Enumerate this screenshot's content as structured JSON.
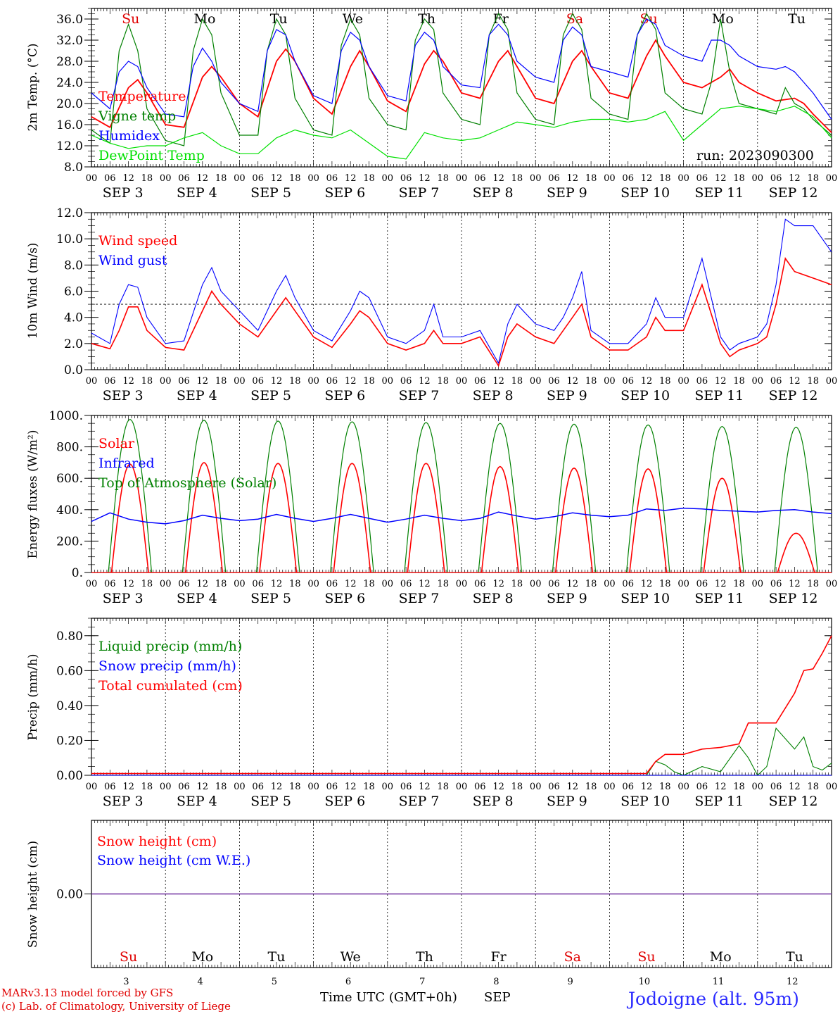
{
  "run_label": "run: 2023090300",
  "site_label": "Jodoigne (alt. 95m)",
  "credit_line1": "MARv3.13 model forced by GFS",
  "credit_line2": "(c) Lab. of Climatology, University of Liege",
  "xaxis_title": "Time UTC (GMT+0h)",
  "month_label": "SEP",
  "hour_ticks": [
    "00",
    "06",
    "12",
    "18"
  ],
  "date_labels": [
    "SEP  3",
    "SEP  4",
    "SEP  5",
    "SEP  6",
    "SEP  7",
    "SEP  8",
    "SEP  9",
    "SEP 10",
    "SEP 11",
    "SEP 12"
  ],
  "day_numbers": [
    "3",
    "4",
    "5",
    "6",
    "7",
    "8",
    "9",
    "10",
    "11",
    "12"
  ],
  "weekdays": [
    "Su",
    "Mo",
    "Tu",
    "We",
    "Th",
    "Fr",
    "Sa",
    "Su",
    "Mo",
    "Tu"
  ],
  "weekday_colors": [
    "#e00000",
    "#000000",
    "#000000",
    "#000000",
    "#000000",
    "#000000",
    "#e00000",
    "#e00000",
    "#000000",
    "#000000"
  ],
  "colors": {
    "red": "#ff0000",
    "green": "#008000",
    "blue": "#0000ff",
    "lightgreen": "#00e000",
    "purple": "#7030a0"
  },
  "chart_data": [
    {
      "type": "line",
      "ylabel": "2m Temp. (°C)",
      "ylim": [
        8,
        38
      ],
      "yticks": [
        "8.0",
        "12.0",
        "16.0",
        "20.0",
        "24.0",
        "28.0",
        "32.0",
        "36.0"
      ],
      "x_unit": "hours since SEP 3 00 UTC",
      "xlim": [
        0,
        240
      ],
      "series": [
        {
          "name": "Temperature",
          "color": "#ff0000",
          "x": [
            0,
            6,
            12,
            15,
            18,
            24,
            30,
            36,
            39,
            42,
            48,
            54,
            60,
            63,
            66,
            72,
            78,
            84,
            87,
            90,
            96,
            102,
            108,
            111,
            114,
            120,
            126,
            132,
            135,
            138,
            144,
            150,
            156,
            159,
            162,
            168,
            174,
            180,
            183,
            186,
            192,
            198,
            204,
            207,
            210,
            216,
            222,
            228,
            231,
            234,
            240
          ],
          "y": [
            17.5,
            15.5,
            23,
            24.5,
            22,
            16,
            15.5,
            25,
            27,
            25,
            20,
            17.5,
            28,
            30.3,
            28,
            21,
            18,
            27,
            30,
            27,
            20.5,
            18.5,
            27.5,
            30,
            28,
            22,
            21,
            28,
            30,
            27,
            21,
            20,
            28,
            30,
            27,
            22,
            21,
            29,
            32,
            29,
            24,
            23,
            25,
            26.5,
            24,
            22,
            20.5,
            21,
            20,
            18,
            14.5
          ]
        },
        {
          "name": "Vigne temp",
          "color": "#008000",
          "x": [
            0,
            6,
            9,
            12,
            15,
            18,
            24,
            30,
            33,
            36,
            39,
            42,
            48,
            54,
            57,
            60,
            63,
            66,
            72,
            78,
            81,
            84,
            87,
            90,
            96,
            102,
            105,
            108,
            111,
            114,
            120,
            126,
            129,
            132,
            135,
            138,
            144,
            150,
            153,
            156,
            159,
            162,
            168,
            174,
            177,
            180,
            183,
            186,
            192,
            198,
            201,
            204,
            207,
            210,
            216,
            222,
            225,
            228,
            231,
            234,
            240
          ],
          "y": [
            15,
            12.5,
            30,
            35,
            30,
            19,
            13,
            12,
            30,
            36,
            33,
            22,
            14,
            14,
            30,
            36,
            33,
            21,
            15,
            14,
            31,
            36,
            33,
            21,
            16,
            15,
            32,
            36,
            34,
            22,
            17,
            16,
            33,
            37,
            34,
            22,
            17,
            16,
            33,
            37,
            34,
            21,
            18,
            17,
            33,
            37,
            34,
            22,
            19,
            18,
            24,
            36,
            26,
            20,
            19,
            18,
            23,
            20,
            19,
            17,
            14
          ]
        },
        {
          "name": "Humidex",
          "color": "#0000ff",
          "x": [
            0,
            6,
            9,
            12,
            15,
            18,
            24,
            30,
            33,
            36,
            39,
            42,
            48,
            54,
            57,
            60,
            63,
            66,
            72,
            78,
            81,
            84,
            87,
            90,
            96,
            102,
            105,
            108,
            111,
            114,
            120,
            126,
            129,
            132,
            135,
            138,
            144,
            150,
            153,
            156,
            159,
            162,
            168,
            174,
            177,
            180,
            183,
            186,
            192,
            198,
            201,
            204,
            207,
            210,
            216,
            222,
            225,
            228,
            231,
            234,
            240
          ],
          "y": [
            22,
            19,
            26,
            28,
            27,
            23,
            18,
            17.5,
            27,
            30.5,
            28,
            24,
            20,
            18.5,
            30,
            34,
            33,
            28,
            21.5,
            20,
            30,
            33.5,
            32,
            27,
            21.5,
            20.5,
            31,
            33.5,
            32,
            27,
            23.5,
            23,
            33,
            35,
            33,
            28,
            25,
            24,
            32,
            34.5,
            33,
            27,
            26,
            25,
            33,
            36,
            35,
            31,
            29,
            28,
            32,
            32,
            31,
            29,
            27,
            26.5,
            27,
            26,
            24,
            22,
            17
          ]
        },
        {
          "name": "DewPoint Temp",
          "color": "#00e000",
          "x": [
            0,
            6,
            12,
            18,
            24,
            30,
            36,
            42,
            48,
            54,
            60,
            66,
            72,
            78,
            84,
            90,
            96,
            102,
            108,
            114,
            120,
            126,
            132,
            138,
            144,
            150,
            156,
            162,
            168,
            174,
            180,
            186,
            192,
            198,
            204,
            210,
            216,
            222,
            228,
            234,
            240
          ],
          "y": [
            14,
            12.5,
            11.5,
            12,
            12,
            13.5,
            14.5,
            12,
            10.5,
            10.5,
            13.5,
            15,
            14,
            13.5,
            15,
            12.5,
            10,
            9.5,
            14.5,
            13.5,
            13,
            13.5,
            15,
            16.5,
            16,
            15.5,
            16.5,
            17,
            17,
            16.5,
            17,
            18.5,
            13,
            16,
            19,
            19.5,
            19,
            18.5,
            19.5,
            17.5,
            13.5
          ]
        }
      ]
    },
    {
      "type": "line",
      "ylabel": "10m Wind (m/s)",
      "ylim": [
        0,
        12
      ],
      "yticks": [
        "0.0",
        "2.0",
        "4.0",
        "6.0",
        "8.0",
        "10.0",
        "12.0"
      ],
      "reference_line": 5.0,
      "xlim": [
        0,
        240
      ],
      "series": [
        {
          "name": "Wind speed",
          "color": "#ff0000",
          "x": [
            0,
            6,
            9,
            12,
            15,
            18,
            24,
            30,
            36,
            39,
            42,
            48,
            54,
            60,
            63,
            66,
            72,
            78,
            84,
            87,
            90,
            96,
            102,
            108,
            111,
            114,
            120,
            126,
            132,
            135,
            138,
            144,
            150,
            153,
            156,
            159,
            162,
            168,
            174,
            180,
            183,
            186,
            192,
            198,
            204,
            207,
            210,
            216,
            219,
            222,
            225,
            228,
            234,
            240
          ],
          "y": [
            2,
            1.6,
            3,
            4.8,
            4.8,
            3,
            1.7,
            1.5,
            4.5,
            6,
            5,
            3.5,
            2.5,
            4.5,
            5.5,
            4.5,
            2.5,
            1.7,
            3.5,
            4.5,
            4,
            2,
            1.5,
            2,
            3,
            2,
            2,
            2.5,
            0.3,
            2.5,
            3.5,
            2.5,
            2,
            3,
            4,
            5,
            2.5,
            1.5,
            1.5,
            2.5,
            4,
            3,
            3,
            6.5,
            2,
            1,
            1.5,
            2,
            2.5,
            5,
            8.5,
            7.5,
            7,
            6.5
          ]
        },
        {
          "name": "Wind gust",
          "color": "#0000ff",
          "x": [
            0,
            6,
            9,
            12,
            15,
            18,
            24,
            30,
            36,
            39,
            42,
            48,
            54,
            60,
            63,
            66,
            72,
            78,
            84,
            87,
            90,
            96,
            102,
            108,
            111,
            114,
            120,
            126,
            132,
            135,
            138,
            144,
            150,
            153,
            156,
            159,
            162,
            168,
            174,
            180,
            183,
            186,
            192,
            198,
            204,
            207,
            210,
            216,
            219,
            222,
            225,
            228,
            234,
            240
          ],
          "y": [
            2.8,
            2,
            5,
            6.5,
            6.3,
            4,
            2,
            2.2,
            6.5,
            7.8,
            6,
            4.5,
            3,
            6,
            7.2,
            5.5,
            3,
            2.2,
            4.5,
            6,
            5.5,
            2.5,
            2,
            3,
            5,
            2.5,
            2.5,
            3,
            0.5,
            3.5,
            5,
            3.5,
            3,
            4,
            5.5,
            7.5,
            3,
            2,
            2,
            3.5,
            5.5,
            4,
            4,
            8.5,
            2.5,
            1.5,
            2,
            2.5,
            3.5,
            6.5,
            11.5,
            11,
            11,
            9
          ]
        }
      ]
    },
    {
      "type": "line",
      "ylabel": "Energy fluxes (W/m²)",
      "ylim": [
        0,
        1000
      ],
      "yticks": [
        "0.",
        "200.",
        "400.",
        "600.",
        "800.",
        "1000."
      ],
      "xlim": [
        0,
        240
      ],
      "series": [
        {
          "name": "Solar",
          "color": "#ff0000"
        },
        {
          "name": "Infrared",
          "color": "#0000ff"
        },
        {
          "name": "Top of Atmosphere (Solar)",
          "color": "#008000"
        }
      ],
      "solar_daily_peak": [
        690,
        700,
        695,
        695,
        695,
        675,
        665,
        660,
        600,
        250
      ],
      "toa_daily_peak": [
        975,
        970,
        965,
        960,
        955,
        950,
        945,
        940,
        930,
        925
      ],
      "infrared_x": [
        0,
        6,
        12,
        18,
        24,
        30,
        36,
        42,
        48,
        54,
        60,
        66,
        72,
        78,
        84,
        90,
        96,
        102,
        108,
        114,
        120,
        126,
        132,
        138,
        144,
        150,
        156,
        162,
        168,
        174,
        180,
        186,
        192,
        198,
        204,
        210,
        216,
        222,
        228,
        234,
        240
      ],
      "infrared_y": [
        325,
        380,
        340,
        320,
        310,
        330,
        365,
        345,
        330,
        340,
        370,
        345,
        325,
        345,
        370,
        345,
        320,
        340,
        365,
        345,
        330,
        345,
        385,
        360,
        340,
        355,
        380,
        365,
        355,
        365,
        405,
        395,
        410,
        405,
        395,
        390,
        385,
        395,
        400,
        385,
        375
      ]
    },
    {
      "type": "line",
      "ylabel": "Precip (mm/h)",
      "ylim": [
        0,
        0.9
      ],
      "yticks": [
        "0.00",
        "0.20",
        "0.40",
        "0.60",
        "0.80"
      ],
      "xlim": [
        0,
        240
      ],
      "series": [
        {
          "name": "Liquid precip (mm/h)",
          "color": "#008000",
          "x": [
            0,
            180,
            183,
            186,
            189,
            192,
            198,
            204,
            210,
            213,
            216,
            219,
            222,
            228,
            231,
            234,
            237,
            240
          ],
          "y": [
            0,
            0,
            0.08,
            0.06,
            0.02,
            0,
            0.05,
            0.02,
            0.17,
            0.1,
            0,
            0.05,
            0.27,
            0.15,
            0.22,
            0.05,
            0.03,
            0.07
          ]
        },
        {
          "name": "Snow precip (mm/h)",
          "color": "#0000ff",
          "x": [
            0,
            240
          ],
          "y": [
            0,
            0
          ]
        },
        {
          "name": "Total cumulated (cm)",
          "color": "#ff0000",
          "x": [
            0,
            180,
            183,
            186,
            192,
            198,
            204,
            210,
            213,
            216,
            222,
            228,
            231,
            234,
            237,
            240
          ],
          "y": [
            0.01,
            0.01,
            0.08,
            0.12,
            0.12,
            0.15,
            0.16,
            0.18,
            0.3,
            0.3,
            0.3,
            0.47,
            0.6,
            0.61,
            0.7,
            0.8
          ]
        }
      ]
    },
    {
      "type": "line",
      "ylabel": "Snow height (cm)",
      "ylim": [
        -1,
        1
      ],
      "yticks": [
        "0.00"
      ],
      "xlim": [
        0,
        240
      ],
      "series": [
        {
          "name": "Snow height (cm)",
          "color": "#ff0000",
          "x": [
            0,
            240
          ],
          "y": [
            0,
            0
          ]
        },
        {
          "name": "Snow height (cm W.E.)",
          "color": "#0000ff",
          "x": [
            0,
            240
          ],
          "y": [
            0,
            0
          ]
        }
      ]
    }
  ]
}
